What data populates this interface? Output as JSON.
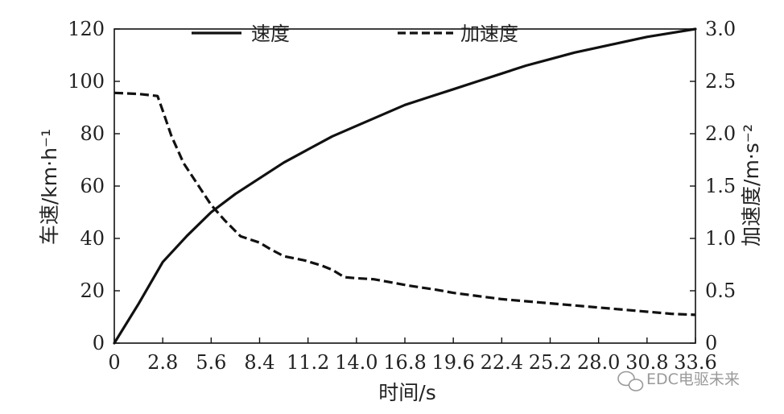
{
  "chart_data": {
    "type": "line",
    "xlabel": "时间/s",
    "ylabel_left": "车速/km·h⁻¹",
    "ylabel_right": "加速度/m·s⁻²",
    "x_ticks": [
      "0",
      "2.8",
      "5.6",
      "8.4",
      "11.2",
      "14.0",
      "16.8",
      "19.6",
      "22.4",
      "25.2",
      "28.0",
      "30.8",
      "33.6"
    ],
    "y_left_ticks": [
      "0",
      "20",
      "40",
      "60",
      "80",
      "100",
      "120"
    ],
    "y_right_ticks": [
      "0",
      "0.5",
      "1.0",
      "1.5",
      "2.0",
      "2.5",
      "3.0"
    ],
    "xlim": [
      0,
      33.6
    ],
    "ylim_left": [
      0,
      120
    ],
    "ylim_right": [
      0,
      3.0
    ],
    "legend_position": "top",
    "series": [
      {
        "name": "速度",
        "axis": "left",
        "style": "solid",
        "x": [
          0,
          1.4,
          2.8,
          4.2,
          5.6,
          7.0,
          8.4,
          9.8,
          11.2,
          12.6,
          14.0,
          15.4,
          16.8,
          18.2,
          19.6,
          21.0,
          22.4,
          23.8,
          25.2,
          26.6,
          28.0,
          29.4,
          30.8,
          32.2,
          33.6
        ],
        "values": [
          0,
          15,
          31,
          41,
          50,
          57,
          63,
          69,
          74,
          79,
          83,
          87,
          91,
          94,
          97,
          100,
          103,
          106,
          108.5,
          111,
          113,
          115,
          117,
          118.5,
          120
        ]
      },
      {
        "name": "加速度",
        "axis": "right",
        "style": "dashed",
        "x": [
          0,
          1.4,
          2.5,
          2.8,
          3.3,
          4.0,
          5.0,
          5.6,
          6.4,
          7.3,
          8.4,
          9.0,
          9.8,
          11.0,
          12.0,
          12.6,
          13.3,
          14.0,
          15.0,
          16.0,
          17.0,
          18.6,
          19.6,
          21.0,
          22.4,
          23.8,
          25.2,
          26.6,
          28.0,
          29.4,
          30.8,
          32.2,
          33.6
        ],
        "values": [
          2.39,
          2.38,
          2.36,
          2.22,
          1.98,
          1.72,
          1.47,
          1.32,
          1.17,
          1.02,
          0.96,
          0.9,
          0.83,
          0.79,
          0.74,
          0.7,
          0.63,
          0.62,
          0.61,
          0.58,
          0.55,
          0.51,
          0.48,
          0.45,
          0.42,
          0.4,
          0.38,
          0.36,
          0.34,
          0.32,
          0.3,
          0.28,
          0.27
        ]
      }
    ]
  },
  "watermark": {
    "text": "EDC电驱未来",
    "icon": "wechat-logo-icon"
  }
}
